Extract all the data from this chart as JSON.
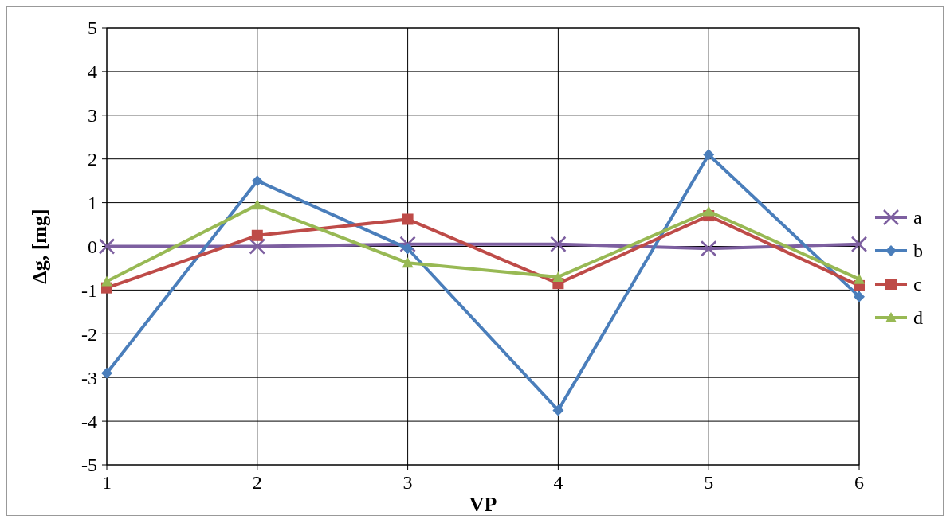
{
  "chart_data": {
    "type": "line",
    "xlabel": "VP",
    "ylabel": "Δg, [mg]",
    "x": [
      1,
      2,
      3,
      4,
      5,
      6
    ],
    "xlim": [
      1,
      6
    ],
    "xticks": [
      1,
      2,
      3,
      4,
      5,
      6
    ],
    "ylim": [
      -5,
      5
    ],
    "yticks": [
      -5,
      -4,
      -3,
      -2,
      -1,
      0,
      1,
      2,
      3,
      4,
      5
    ],
    "grid": true,
    "legend": "right",
    "series": [
      {
        "name": "a",
        "color": "#7d5fa0",
        "marker": "cross",
        "values": [
          0,
          0,
          0.05,
          0.05,
          -0.05,
          0.05
        ]
      },
      {
        "name": "b",
        "color": "#4a7ebb",
        "marker": "diamond",
        "values": [
          -2.9,
          1.5,
          -0.05,
          -3.75,
          2.1,
          -1.15
        ]
      },
      {
        "name": "c",
        "color": "#be4b48",
        "marker": "square",
        "values": [
          -0.95,
          0.25,
          0.62,
          -0.85,
          0.7,
          -0.9
        ]
      },
      {
        "name": "d",
        "color": "#98b954",
        "marker": "triangle",
        "values": [
          -0.8,
          0.95,
          -0.38,
          -0.7,
          0.8,
          -0.75
        ]
      }
    ]
  }
}
